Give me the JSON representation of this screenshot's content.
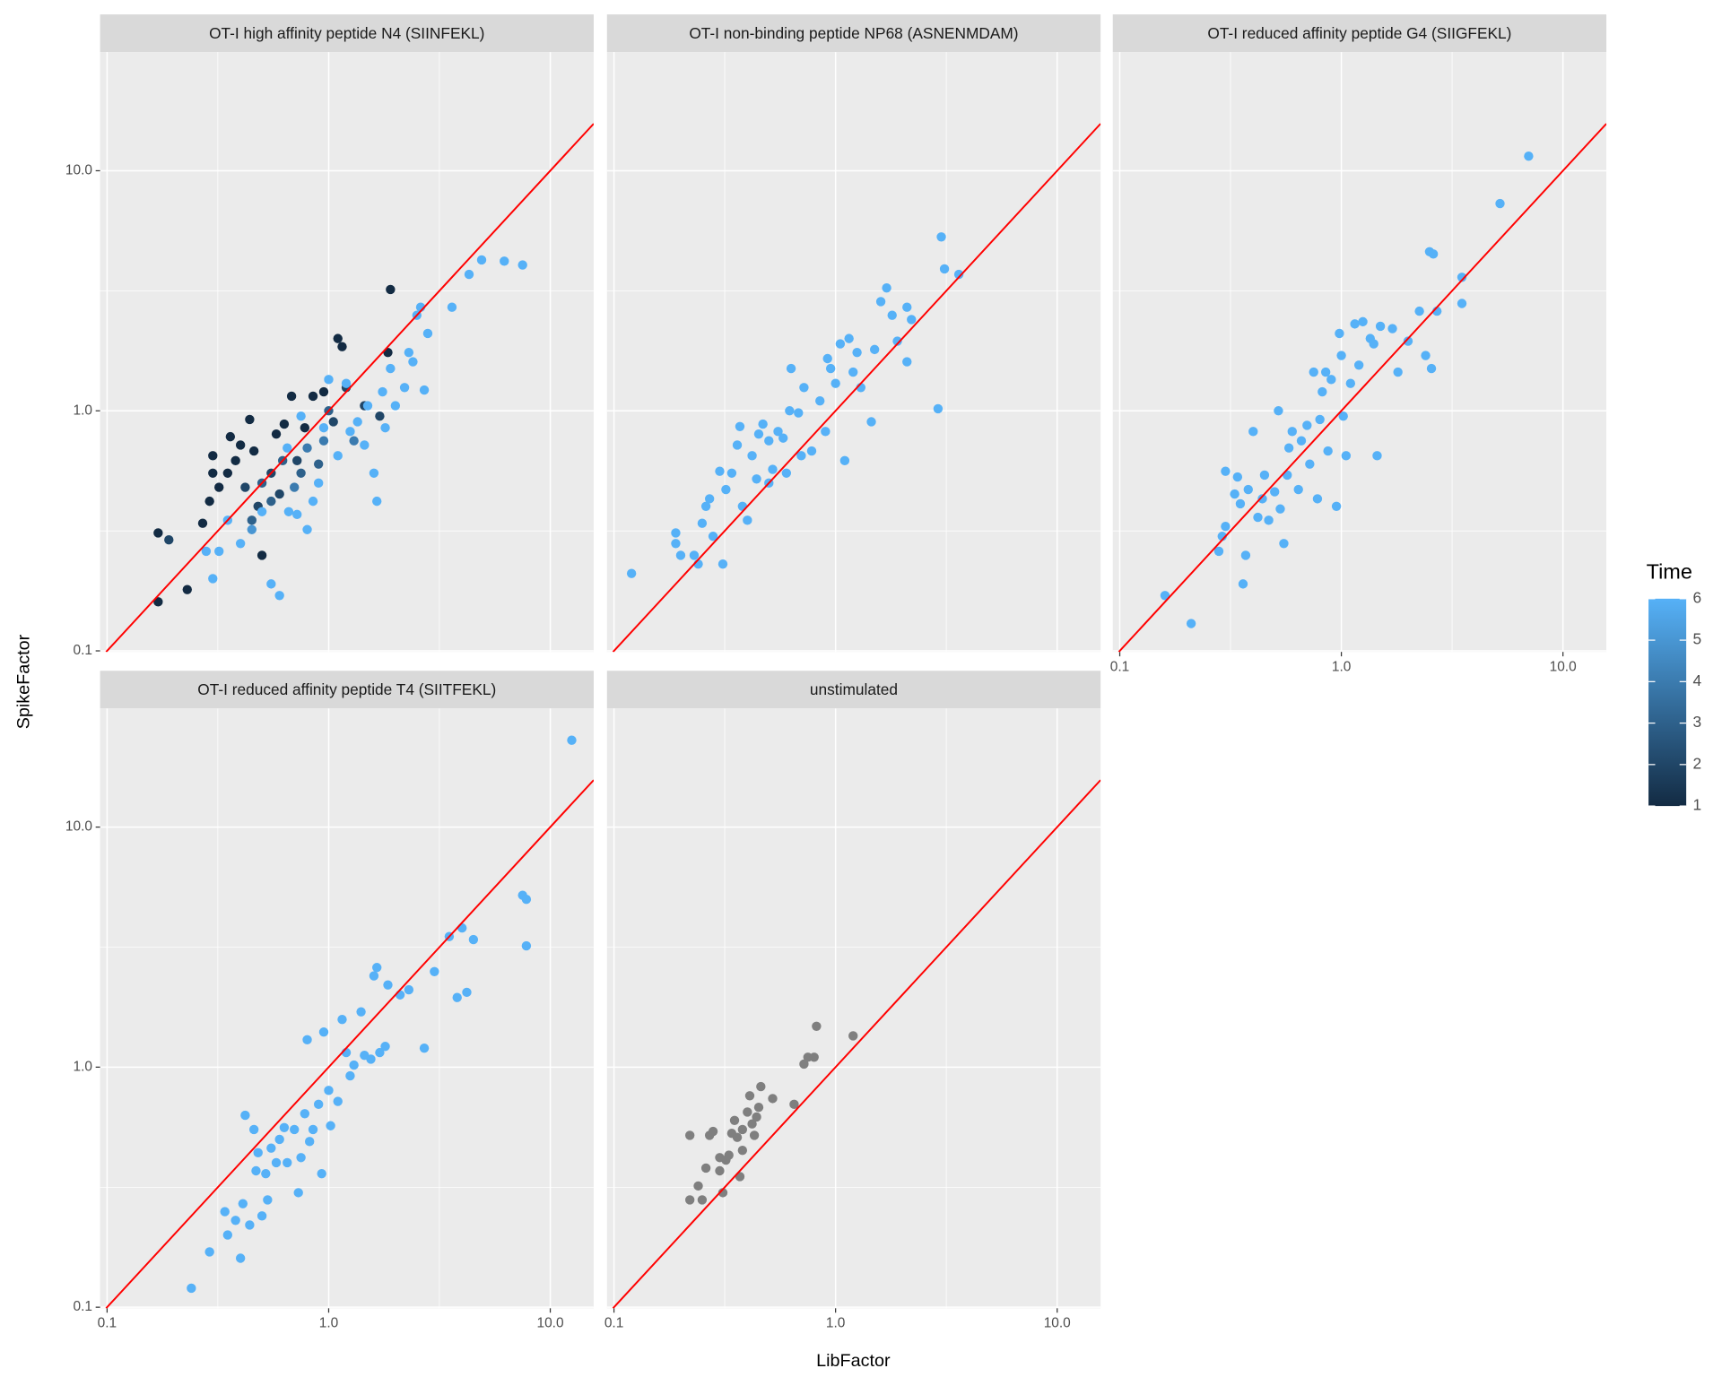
{
  "chart_data": {
    "type": "scatter",
    "x_label": "LibFactor",
    "y_label": "SpikeFactor",
    "legend_title": "Time",
    "log_x": true,
    "log_y": true,
    "xlim": [
      0.093,
      15.7
    ],
    "ylim": [
      0.099,
      31.2
    ],
    "xticks": [
      0.1,
      {
        "value": 1,
        "label": "1.0"
      },
      {
        "value": 10,
        "label": "10.0"
      }
    ],
    "yticks": [
      0.1,
      {
        "value": 1,
        "label": "1.0"
      },
      {
        "value": 10,
        "label": "10.0"
      }
    ],
    "minor_ticks": [
      0.316,
      3.16
    ],
    "grid": true,
    "reference_line_color": "#ff0000",
    "low_color": "#132B43",
    "high_color": "#56B1F7",
    "na_color": "#7f7f7f",
    "color_lim": [
      1,
      6
    ],
    "color_ticks": [
      1,
      2,
      3,
      4,
      5,
      6
    ],
    "legend_position": "right",
    "facets": [
      {
        "title": "OT-I high affinity peptide N4 (SIINFEKL)",
        "x": [
          0.17,
          0.23,
          0.17,
          0.19,
          0.27,
          0.29,
          0.3,
          0.3,
          0.32,
          0.35,
          0.36,
          0.38,
          0.4,
          0.42,
          0.44,
          0.46,
          0.48,
          0.5,
          0.55,
          0.58,
          0.6,
          0.63,
          0.68,
          0.72,
          0.78,
          0.85,
          0.95,
          1.05,
          1.1,
          1.15,
          1.2,
          1.45,
          1.7,
          1.85,
          1.9,
          0.9,
          0.75,
          0.62,
          0.5,
          0.8,
          0.95,
          0.7,
          0.55,
          1.0,
          1.3,
          0.45,
          0.28,
          0.3,
          0.32,
          0.35,
          0.4,
          0.45,
          0.5,
          0.55,
          0.6,
          0.66,
          0.72,
          0.8,
          0.85,
          0.9,
          0.95,
          1.0,
          1.1,
          1.2,
          1.35,
          1.45,
          1.5,
          1.6,
          1.65,
          1.75,
          1.9,
          2.0,
          2.2,
          2.4,
          2.5,
          2.6,
          2.7,
          2.8,
          3.6,
          4.3,
          4.9,
          6.2,
          7.5,
          1.25,
          0.65,
          0.75,
          2.3,
          1.8
        ],
        "y": [
          0.16,
          0.18,
          0.31,
          0.29,
          0.34,
          0.42,
          0.55,
          0.65,
          0.48,
          0.55,
          0.78,
          0.62,
          0.72,
          0.48,
          0.92,
          0.68,
          0.4,
          0.25,
          0.55,
          0.8,
          0.45,
          0.88,
          1.15,
          0.62,
          0.85,
          1.15,
          1.2,
          0.9,
          2.0,
          1.85,
          1.25,
          1.05,
          0.95,
          1.75,
          3.2,
          0.6,
          0.55,
          0.62,
          0.5,
          0.7,
          0.75,
          0.48,
          0.42,
          1.0,
          0.75,
          0.35,
          0.26,
          0.2,
          0.26,
          0.35,
          0.28,
          0.32,
          0.38,
          0.19,
          0.17,
          0.38,
          0.37,
          0.32,
          0.42,
          0.5,
          0.85,
          1.35,
          0.65,
          1.3,
          0.9,
          0.72,
          1.05,
          0.55,
          0.42,
          1.2,
          1.5,
          1.05,
          1.25,
          1.6,
          2.5,
          2.7,
          1.22,
          2.1,
          2.7,
          3.7,
          4.25,
          4.2,
          4.05,
          0.82,
          0.7,
          0.95,
          1.75,
          0.85
        ],
        "time": [
          1,
          1,
          1,
          2,
          1,
          1,
          1,
          1,
          1,
          1,
          1,
          1,
          1,
          2,
          1,
          1,
          2,
          1,
          2,
          1,
          2,
          1,
          1,
          2,
          1,
          1,
          1,
          2,
          1,
          1,
          2,
          2,
          2,
          1,
          1,
          3,
          3,
          3,
          3,
          4,
          4,
          4,
          3,
          3,
          4,
          3,
          6,
          6,
          6,
          6,
          6,
          5,
          6,
          6,
          6,
          6,
          6,
          6,
          6,
          6,
          6,
          6,
          6,
          6,
          6,
          6,
          6,
          6,
          6,
          6,
          6,
          6,
          6,
          6,
          6,
          6,
          6,
          6,
          6,
          6,
          6,
          6,
          6,
          6,
          6,
          6,
          6,
          6
        ]
      },
      {
        "title": "OT-I non-binding peptide NP68 (ASNENMDAM)",
        "x": [
          0.12,
          0.19,
          0.19,
          0.2,
          0.23,
          0.24,
          0.25,
          0.26,
          0.27,
          0.28,
          0.3,
          0.31,
          0.32,
          0.34,
          0.36,
          0.37,
          0.38,
          0.4,
          0.42,
          0.44,
          0.45,
          0.47,
          0.5,
          0.52,
          0.55,
          0.58,
          0.6,
          0.62,
          0.63,
          0.68,
          0.72,
          0.78,
          0.85,
          0.9,
          0.92,
          1.0,
          1.05,
          1.1,
          1.15,
          1.2,
          1.3,
          1.45,
          1.5,
          1.6,
          1.7,
          1.8,
          1.9,
          2.1,
          2.2,
          2.1,
          2.9,
          3.0,
          3.1,
          3.6,
          1.25,
          0.95,
          0.7,
          0.5
        ],
        "y": [
          0.21,
          0.31,
          0.28,
          0.25,
          0.25,
          0.23,
          0.34,
          0.4,
          0.43,
          0.3,
          0.56,
          0.23,
          0.47,
          0.55,
          0.72,
          0.86,
          0.4,
          0.35,
          0.65,
          0.52,
          0.8,
          0.88,
          0.75,
          0.57,
          0.82,
          0.77,
          0.55,
          1.0,
          1.5,
          0.98,
          1.25,
          0.68,
          1.1,
          0.82,
          1.65,
          1.3,
          1.9,
          0.62,
          2.0,
          1.45,
          1.25,
          0.9,
          1.8,
          2.85,
          3.25,
          2.5,
          1.95,
          2.7,
          2.4,
          1.6,
          1.02,
          5.3,
          3.9,
          3.7,
          1.75,
          1.5,
          0.65,
          0.5
        ],
        "time": [
          6,
          6,
          6,
          6,
          6,
          6,
          6,
          6,
          6,
          6,
          6,
          6,
          6,
          6,
          6,
          6,
          6,
          6,
          6,
          6,
          6,
          6,
          6,
          6,
          6,
          6,
          6,
          6,
          6,
          6,
          6,
          6,
          6,
          6,
          6,
          6,
          6,
          6,
          6,
          6,
          6,
          6,
          6,
          6,
          6,
          6,
          6,
          6,
          6,
          6,
          6,
          6,
          6,
          6,
          6,
          6,
          6,
          6
        ]
      },
      {
        "title": "OT-I reduced affinity peptide G4 (SIIGFEKL)",
        "x": [
          0.16,
          0.21,
          0.28,
          0.29,
          0.3,
          0.3,
          0.33,
          0.34,
          0.35,
          0.36,
          0.37,
          0.38,
          0.4,
          0.42,
          0.44,
          0.45,
          0.47,
          0.5,
          0.52,
          0.53,
          0.55,
          0.57,
          0.58,
          0.6,
          0.64,
          0.66,
          0.7,
          0.72,
          0.75,
          0.78,
          0.8,
          0.82,
          0.85,
          0.87,
          0.9,
          0.95,
          0.98,
          1.0,
          1.02,
          1.05,
          1.1,
          1.15,
          1.2,
          1.25,
          1.35,
          1.4,
          1.45,
          1.5,
          1.7,
          1.8,
          2.0,
          2.25,
          2.4,
          2.5,
          2.55,
          2.6,
          2.7,
          3.5,
          3.5,
          5.2,
          7.0
        ],
        "y": [
          0.17,
          0.13,
          0.26,
          0.3,
          0.33,
          0.56,
          0.45,
          0.53,
          0.41,
          0.19,
          0.25,
          0.47,
          0.82,
          0.36,
          0.43,
          0.54,
          0.35,
          0.46,
          1.0,
          0.39,
          0.28,
          0.54,
          0.7,
          0.82,
          0.47,
          0.75,
          0.87,
          0.6,
          1.45,
          0.43,
          0.92,
          1.2,
          1.45,
          0.68,
          1.35,
          0.4,
          2.1,
          1.7,
          0.95,
          0.65,
          1.3,
          2.3,
          1.55,
          2.35,
          2.0,
          1.9,
          0.65,
          2.25,
          2.2,
          1.45,
          1.95,
          2.6,
          1.7,
          4.6,
          1.5,
          4.5,
          2.6,
          2.8,
          3.6,
          7.3,
          11.5
        ],
        "time": [
          6,
          6,
          6,
          6,
          6,
          6,
          6,
          6,
          6,
          6,
          6,
          6,
          6,
          6,
          6,
          6,
          6,
          6,
          6,
          6,
          6,
          6,
          6,
          6,
          6,
          6,
          6,
          6,
          6,
          6,
          6,
          6,
          6,
          6,
          6,
          6,
          6,
          6,
          6,
          6,
          6,
          6,
          6,
          6,
          6,
          6,
          6,
          6,
          6,
          6,
          6,
          6,
          6,
          6,
          6,
          6,
          6,
          6,
          6,
          6,
          6
        ]
      },
      {
        "title": "OT-I reduced affinity peptide T4 (SIITFEKL)",
        "x": [
          0.24,
          0.29,
          0.34,
          0.35,
          0.38,
          0.4,
          0.41,
          0.42,
          0.44,
          0.46,
          0.47,
          0.48,
          0.5,
          0.52,
          0.53,
          0.55,
          0.58,
          0.6,
          0.63,
          0.65,
          0.7,
          0.73,
          0.75,
          0.78,
          0.8,
          0.82,
          0.85,
          0.9,
          0.93,
          0.95,
          1.0,
          1.02,
          1.1,
          1.15,
          1.2,
          1.25,
          1.3,
          1.4,
          1.45,
          1.55,
          1.6,
          1.65,
          1.7,
          1.8,
          1.85,
          2.1,
          2.3,
          2.7,
          3.0,
          3.5,
          3.8,
          4.0,
          4.2,
          4.5,
          7.5,
          7.8,
          7.8,
          12.5
        ],
        "y": [
          0.12,
          0.17,
          0.25,
          0.2,
          0.23,
          0.16,
          0.27,
          0.63,
          0.22,
          0.55,
          0.37,
          0.44,
          0.24,
          0.36,
          0.28,
          0.46,
          0.4,
          0.5,
          0.56,
          0.4,
          0.55,
          0.3,
          0.42,
          0.64,
          1.3,
          0.49,
          0.55,
          0.7,
          0.36,
          1.4,
          0.8,
          0.57,
          0.72,
          1.58,
          1.15,
          0.92,
          1.02,
          1.7,
          1.12,
          1.08,
          2.4,
          2.6,
          1.15,
          1.22,
          2.2,
          2.0,
          2.1,
          1.2,
          2.5,
          3.5,
          1.95,
          3.8,
          2.05,
          3.4,
          5.2,
          5.0,
          3.2,
          23
        ],
        "time": [
          6,
          6,
          6,
          6,
          6,
          6,
          6,
          6,
          6,
          6,
          6,
          6,
          6,
          6,
          6,
          6,
          6,
          6,
          6,
          6,
          6,
          6,
          6,
          6,
          6,
          6,
          6,
          6,
          6,
          6,
          6,
          6,
          6,
          6,
          6,
          6,
          6,
          6,
          6,
          6,
          6,
          6,
          6,
          6,
          6,
          6,
          6,
          6,
          6,
          6,
          6,
          6,
          6,
          6,
          6,
          6,
          6,
          6
        ]
      },
      {
        "title": "unstimulated",
        "x": [
          0.22,
          0.22,
          0.24,
          0.25,
          0.26,
          0.27,
          0.28,
          0.3,
          0.3,
          0.31,
          0.32,
          0.33,
          0.34,
          0.35,
          0.36,
          0.37,
          0.38,
          0.4,
          0.41,
          0.42,
          0.43,
          0.44,
          0.45,
          0.46,
          0.52,
          0.65,
          0.72,
          0.75,
          0.8,
          0.82,
          1.2,
          0.38
        ],
        "y": [
          0.52,
          0.28,
          0.32,
          0.28,
          0.38,
          0.52,
          0.54,
          0.42,
          0.37,
          0.3,
          0.41,
          0.43,
          0.53,
          0.6,
          0.51,
          0.35,
          0.55,
          0.65,
          0.76,
          0.58,
          0.52,
          0.62,
          0.68,
          0.83,
          0.74,
          0.7,
          1.03,
          1.1,
          1.1,
          1.48,
          1.35,
          0.45
        ],
        "time": [
          null,
          null,
          null,
          null,
          null,
          null,
          null,
          null,
          null,
          null,
          null,
          null,
          null,
          null,
          null,
          null,
          null,
          null,
          null,
          null,
          null,
          null,
          null,
          null,
          null,
          null,
          null,
          null,
          null,
          null,
          null,
          null
        ]
      }
    ]
  }
}
